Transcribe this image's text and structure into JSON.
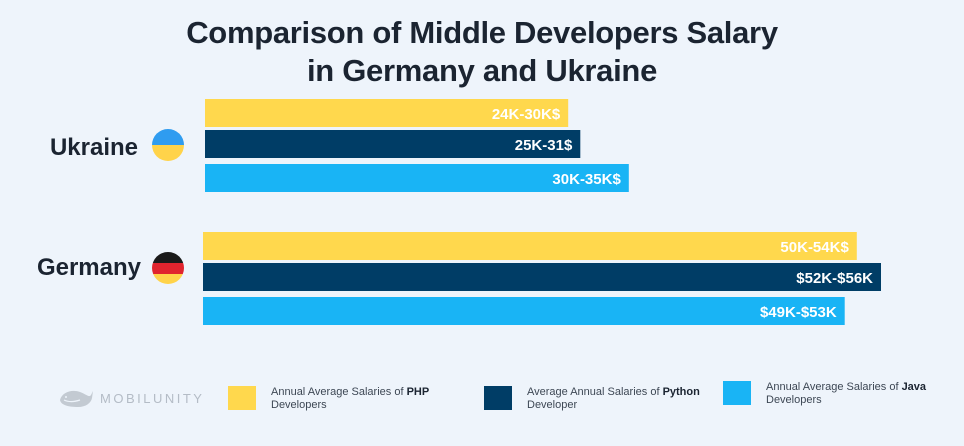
{
  "title_line1": "Comparison of Middle Developers Salary",
  "title_line2": "in Germany and Ukraine",
  "logo": {
    "text": "MOBILUNITY",
    "icon": "whale-icon"
  },
  "colors": {
    "php": "#ffd84d",
    "python": "#003d66",
    "java": "#19b4f5"
  },
  "chart_data": {
    "type": "bar",
    "orientation": "horizontal",
    "categories": [
      "Ukraine",
      "Germany"
    ],
    "series": [
      {
        "name": "PHP",
        "values": [
          30,
          54
        ],
        "labels": [
          "24K-30K$",
          "50K-54K$"
        ]
      },
      {
        "name": "Python",
        "values": [
          31,
          56
        ],
        "labels": [
          "25K-31$",
          "$52K-$56K"
        ]
      },
      {
        "name": "Java",
        "values": [
          35,
          53
        ],
        "labels": [
          "30K-35K$",
          "$49K-$53K"
        ]
      }
    ],
    "xlim": [
      0,
      56
    ],
    "grid": false,
    "legend_position": "bottom"
  },
  "legend": [
    {
      "prefix": "Annual Average Salaries of ",
      "bold": "PHP",
      "suffix": "Developers"
    },
    {
      "prefix": "Average Annual Salaries of ",
      "bold": "Python",
      "suffix": "Developer"
    },
    {
      "prefix": "Annual Average Salaries of ",
      "bold": "Java",
      "suffix": "Developers"
    }
  ]
}
